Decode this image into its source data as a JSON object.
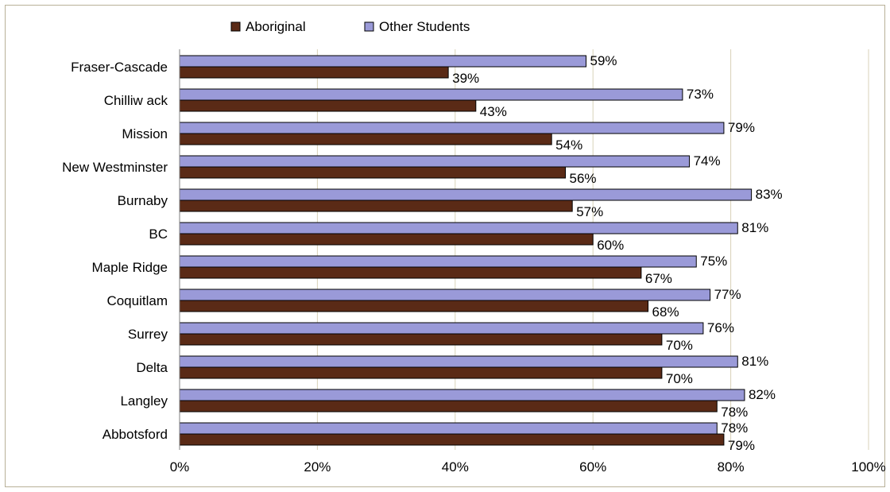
{
  "chart_data": {
    "type": "bar",
    "orientation": "horizontal",
    "title": "",
    "xlabel": "",
    "ylabel": "",
    "xlim": [
      0,
      100
    ],
    "x_ticks": [
      "0%",
      "20%",
      "40%",
      "60%",
      "80%",
      "100%"
    ],
    "x_tick_values": [
      0,
      20,
      40,
      60,
      80,
      100
    ],
    "grid": "vertical",
    "legend_position": "top",
    "categories": [
      "Fraser-Cascade",
      "Chilliw ack",
      "Mission",
      "New Westminster",
      "Burnaby",
      "BC",
      "Maple Ridge",
      "Coquitlam",
      "Surrey",
      "Delta",
      "Langley",
      "Abbotsford"
    ],
    "series": [
      {
        "name": "Aboriginal",
        "color": "#5a2a16",
        "values": [
          39,
          43,
          54,
          56,
          57,
          60,
          67,
          68,
          70,
          70,
          78,
          79
        ],
        "labels": [
          "39%",
          "43%",
          "54%",
          "56%",
          "57%",
          "60%",
          "67%",
          "68%",
          "70%",
          "70%",
          "78%",
          "79%"
        ]
      },
      {
        "name": "Other Students",
        "color": "#9a9ad8",
        "values": [
          59,
          73,
          79,
          74,
          83,
          81,
          75,
          77,
          76,
          81,
          82,
          78
        ],
        "labels": [
          "59%",
          "73%",
          "79%",
          "74%",
          "83%",
          "81%",
          "75%",
          "77%",
          "76%",
          "81%",
          "82%",
          "78%"
        ]
      }
    ]
  }
}
